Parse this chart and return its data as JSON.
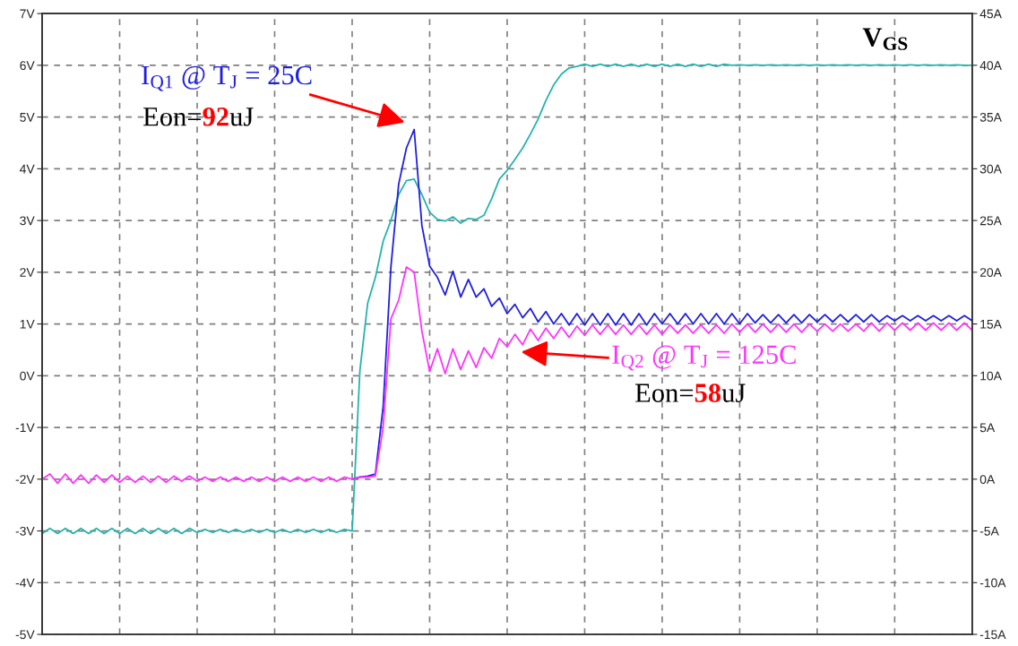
{
  "chart_data": {
    "type": "line",
    "categories": [
      null,
      null,
      null,
      null,
      null,
      null,
      null,
      null,
      null,
      null,
      null,
      null,
      null,
      null,
      null,
      null,
      null,
      null,
      null,
      null,
      null,
      null,
      null,
      null,
      null,
      null,
      null,
      null,
      null,
      null,
      null,
      null,
      null,
      null,
      null,
      null,
      null,
      null,
      null,
      null,
      null,
      null,
      null,
      null,
      null,
      null,
      null,
      null,
      null,
      null,
      null,
      null,
      null,
      null,
      null,
      null,
      null,
      null,
      null,
      null,
      null,
      null,
      null,
      null,
      null,
      null,
      null,
      null,
      null,
      null,
      null,
      null,
      null,
      null,
      null,
      null,
      null,
      null,
      null,
      null,
      null,
      null,
      null,
      null,
      null,
      null,
      null,
      null,
      null,
      null,
      null,
      null,
      null,
      null,
      null,
      null,
      null,
      null,
      null,
      null,
      null,
      null,
      null,
      null,
      null,
      null,
      null,
      null,
      null,
      null,
      null,
      null,
      null,
      null,
      null,
      null,
      null,
      null,
      null,
      null,
      null
    ],
    "series": [
      {
        "name": "V$_{GS}$",
        "color": "#26b3ad",
        "values": [
          -3.05,
          -2.95,
          -3.05,
          -2.95,
          -3.05,
          -2.95,
          -3.05,
          -2.95,
          -3.05,
          -2.95,
          -3.05,
          -2.95,
          -3.05,
          -2.95,
          -3.05,
          -2.95,
          -3.05,
          -2.95,
          -3.05,
          -2.95,
          -3.03,
          -2.97,
          -3.03,
          -2.97,
          -3.03,
          -2.97,
          -3.03,
          -2.97,
          -3.03,
          -2.97,
          -3.03,
          -2.97,
          -3.03,
          -2.97,
          -3.03,
          -2.97,
          -3.03,
          -2.97,
          -3.03,
          -2.97,
          -3.0,
          0.1,
          1.4,
          1.9,
          2.6,
          3.0,
          3.5,
          3.77,
          3.8,
          3.5,
          3.16,
          3.02,
          2.99,
          3.07,
          2.95,
          3.04,
          3.02,
          3.1,
          3.42,
          3.8,
          3.97,
          4.18,
          4.4,
          4.67,
          4.96,
          5.32,
          5.62,
          5.83,
          5.95,
          5.98,
          6.02,
          5.98,
          6.02,
          5.98,
          6.02,
          5.98,
          6.02,
          5.98,
          6.02,
          5.98,
          6.02,
          5.98,
          6.02,
          5.98,
          6.02,
          5.98,
          6.02,
          5.98,
          6.02,
          6.0,
          6.01,
          6.0,
          6.01,
          6.0,
          6.01,
          6.0,
          6.01,
          6.0,
          6.01,
          6.0,
          6.01,
          6.0,
          6.01,
          6.0,
          6.01,
          6.0,
          6.01,
          6.0,
          6.01,
          6.0,
          6.01,
          6.0,
          6.01,
          6.0,
          6.01,
          6.0,
          6.01,
          6.0,
          6.01,
          6.0,
          6.0
        ]
      },
      {
        "name": "I$_{Q1}$ @ T$_{J}$ = 25C",
        "color": "#2020e0",
        "axis": "y2",
        "values": [
          null,
          null,
          null,
          null,
          null,
          null,
          null,
          null,
          null,
          null,
          null,
          null,
          null,
          null,
          null,
          null,
          null,
          null,
          null,
          null,
          null,
          null,
          null,
          null,
          null,
          null,
          null,
          null,
          null,
          null,
          null,
          null,
          null,
          null,
          null,
          null,
          null,
          null,
          null,
          null,
          0.0,
          0.2,
          0.3,
          0.5,
          7.0,
          20.5,
          28.5,
          32.0,
          33.8,
          24.5,
          20.6,
          19.5,
          17.8,
          20.1,
          17.6,
          19.3,
          17.6,
          18.4,
          16.7,
          17.5,
          16.0,
          16.9,
          15.6,
          16.5,
          15.2,
          16.2,
          15.0,
          16.0,
          14.9,
          16.0,
          14.9,
          16.0,
          14.9,
          16.0,
          14.9,
          16.0,
          14.9,
          16.0,
          14.9,
          16.0,
          15.0,
          16.0,
          15.0,
          16.0,
          15.0,
          16.0,
          15.0,
          16.0,
          15.0,
          16.0,
          15.0,
          16.0,
          15.1,
          15.9,
          15.1,
          15.9,
          15.1,
          15.9,
          15.1,
          15.9,
          15.2,
          15.9,
          15.2,
          15.9,
          15.2,
          15.9,
          15.2,
          15.9,
          15.2,
          15.8,
          15.3,
          15.8,
          15.3,
          15.8,
          15.3,
          15.8,
          15.3,
          15.8,
          15.3,
          15.8,
          15.3
        ]
      },
      {
        "name": "I$_{Q2}$ @ T$_{J}$ = 125C",
        "color": "#ff33ff",
        "axis": "y2",
        "values": [
          0.0,
          0.5,
          -0.4,
          0.5,
          -0.4,
          0.4,
          -0.4,
          0.4,
          -0.3,
          0.4,
          -0.3,
          0.3,
          -0.3,
          0.3,
          -0.3,
          0.3,
          -0.3,
          0.3,
          -0.2,
          0.3,
          -0.2,
          0.2,
          -0.2,
          0.2,
          -0.2,
          0.2,
          -0.2,
          0.2,
          -0.2,
          0.2,
          -0.2,
          0.2,
          -0.2,
          0.2,
          -0.2,
          0.2,
          -0.2,
          0.2,
          -0.2,
          0.2,
          0.0,
          0.2,
          0.2,
          0.3,
          5.0,
          15.5,
          17.3,
          20.5,
          20.0,
          14.3,
          10.4,
          12.6,
          10.2,
          12.6,
          10.6,
          12.4,
          10.8,
          12.7,
          11.7,
          13.6,
          12.8,
          14.0,
          13.0,
          14.5,
          13.4,
          14.6,
          13.6,
          14.7,
          13.7,
          14.8,
          13.9,
          14.9,
          14.0,
          14.9,
          14.0,
          14.9,
          14.0,
          14.9,
          14.0,
          14.9,
          14.0,
          14.9,
          14.1,
          14.9,
          14.1,
          14.9,
          14.1,
          14.9,
          14.1,
          15.0,
          14.2,
          15.0,
          14.2,
          15.0,
          14.2,
          15.0,
          14.2,
          15.0,
          14.2,
          15.0,
          14.3,
          15.0,
          14.3,
          15.0,
          14.3,
          15.0,
          14.3,
          15.1,
          14.3,
          15.1,
          14.4,
          15.1,
          14.4,
          15.1,
          14.4,
          15.1,
          14.4,
          15.1,
          14.4,
          15.1,
          14.4
        ]
      }
    ],
    "ylim": [
      -5,
      7
    ],
    "yticks": [
      {
        "value": -5,
        "label": "-5V"
      },
      {
        "value": -4,
        "label": "-4V"
      },
      {
        "value": -3,
        "label": "-3V"
      },
      {
        "value": -2,
        "label": "-2V"
      },
      {
        "value": -1,
        "label": "-1V"
      },
      {
        "value": 0,
        "label": "0V"
      },
      {
        "value": 1,
        "label": "1V"
      },
      {
        "value": 2,
        "label": "2V"
      },
      {
        "value": 3,
        "label": "3V"
      },
      {
        "value": 4,
        "label": "4V"
      },
      {
        "value": 5,
        "label": "5V"
      },
      {
        "value": 6,
        "label": "6V"
      },
      {
        "value": 7,
        "label": "7V"
      }
    ],
    "y2lim": [
      -15,
      45
    ],
    "y2ticks": [
      {
        "value": -15,
        "label": "-15A"
      },
      {
        "value": -10,
        "label": "-10A"
      },
      {
        "value": -5,
        "label": "-5A"
      },
      {
        "value": 0,
        "label": "0A"
      },
      {
        "value": 5,
        "label": "5A"
      },
      {
        "value": 10,
        "label": "10A"
      },
      {
        "value": 15,
        "label": "15A"
      },
      {
        "value": 20,
        "label": "20A"
      },
      {
        "value": 25,
        "label": "25A"
      },
      {
        "value": 30,
        "label": "30A"
      },
      {
        "value": 35,
        "label": "35A"
      },
      {
        "value": 40,
        "label": "40A"
      },
      {
        "value": 45,
        "label": "45A"
      }
    ],
    "annotations": [
      "Eon=92uJ",
      "Eon=58uJ"
    ],
    "grid": true,
    "line_style": "solid",
    "legend": false
  }
}
